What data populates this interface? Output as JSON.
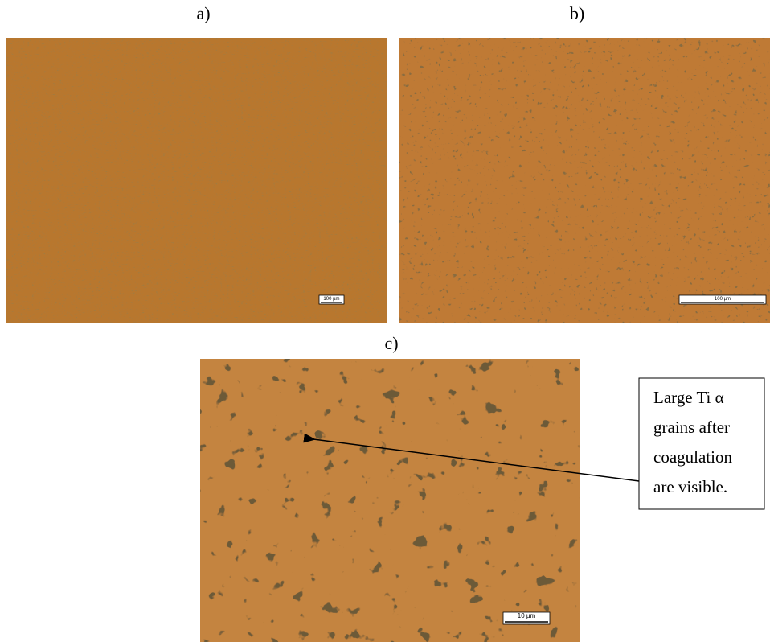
{
  "panels": [
    {
      "label": "a)",
      "scale_bar": "100 µm"
    },
    {
      "label": "b)",
      "scale_bar": "100 µm"
    },
    {
      "label": "c)",
      "scale_bar": "10 µm"
    }
  ],
  "annotation": {
    "lines": [
      "Large Ti α",
      "grains after",
      "coagulation",
      "are visible."
    ]
  }
}
